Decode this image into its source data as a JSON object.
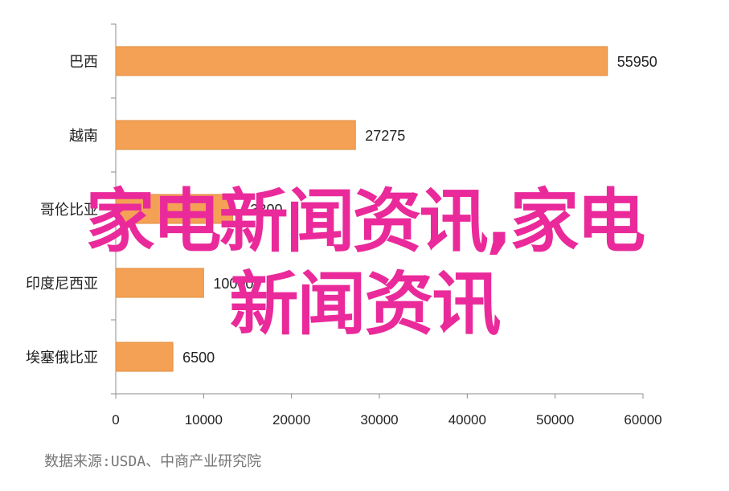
{
  "chart_data": {
    "type": "bar",
    "orientation": "horizontal",
    "categories": [
      "巴西",
      "越南",
      "哥伦比亚",
      "印度尼西亚",
      "埃塞俄比亚"
    ],
    "category_labels_visible": [
      "巴西",
      "越南",
      "哥伦比亚",
      "印度尼西亚",
      "埃塞俄比亚"
    ],
    "values": [
      55950,
      27275,
      13300,
      10000,
      6500
    ],
    "value_labels": [
      "55950",
      "27275",
      "13300",
      "10000",
      "6500"
    ],
    "xlim": [
      0,
      60000
    ],
    "xticks": [
      0,
      10000,
      20000,
      30000,
      40000,
      50000,
      60000
    ],
    "xtick_labels": [
      "0",
      "10000",
      "20000",
      "30000",
      "40000",
      "50000",
      "60000"
    ],
    "bar_color": "#f4a156",
    "bar_edge_color": "#e08a3c",
    "grid": false,
    "legend": "none"
  },
  "source": "数据来源:USDA、中商产业研究院",
  "overlay": {
    "line1": "家电新闻资讯,家电",
    "line2": "新闻资讯",
    "color": "#ea2a9a"
  }
}
